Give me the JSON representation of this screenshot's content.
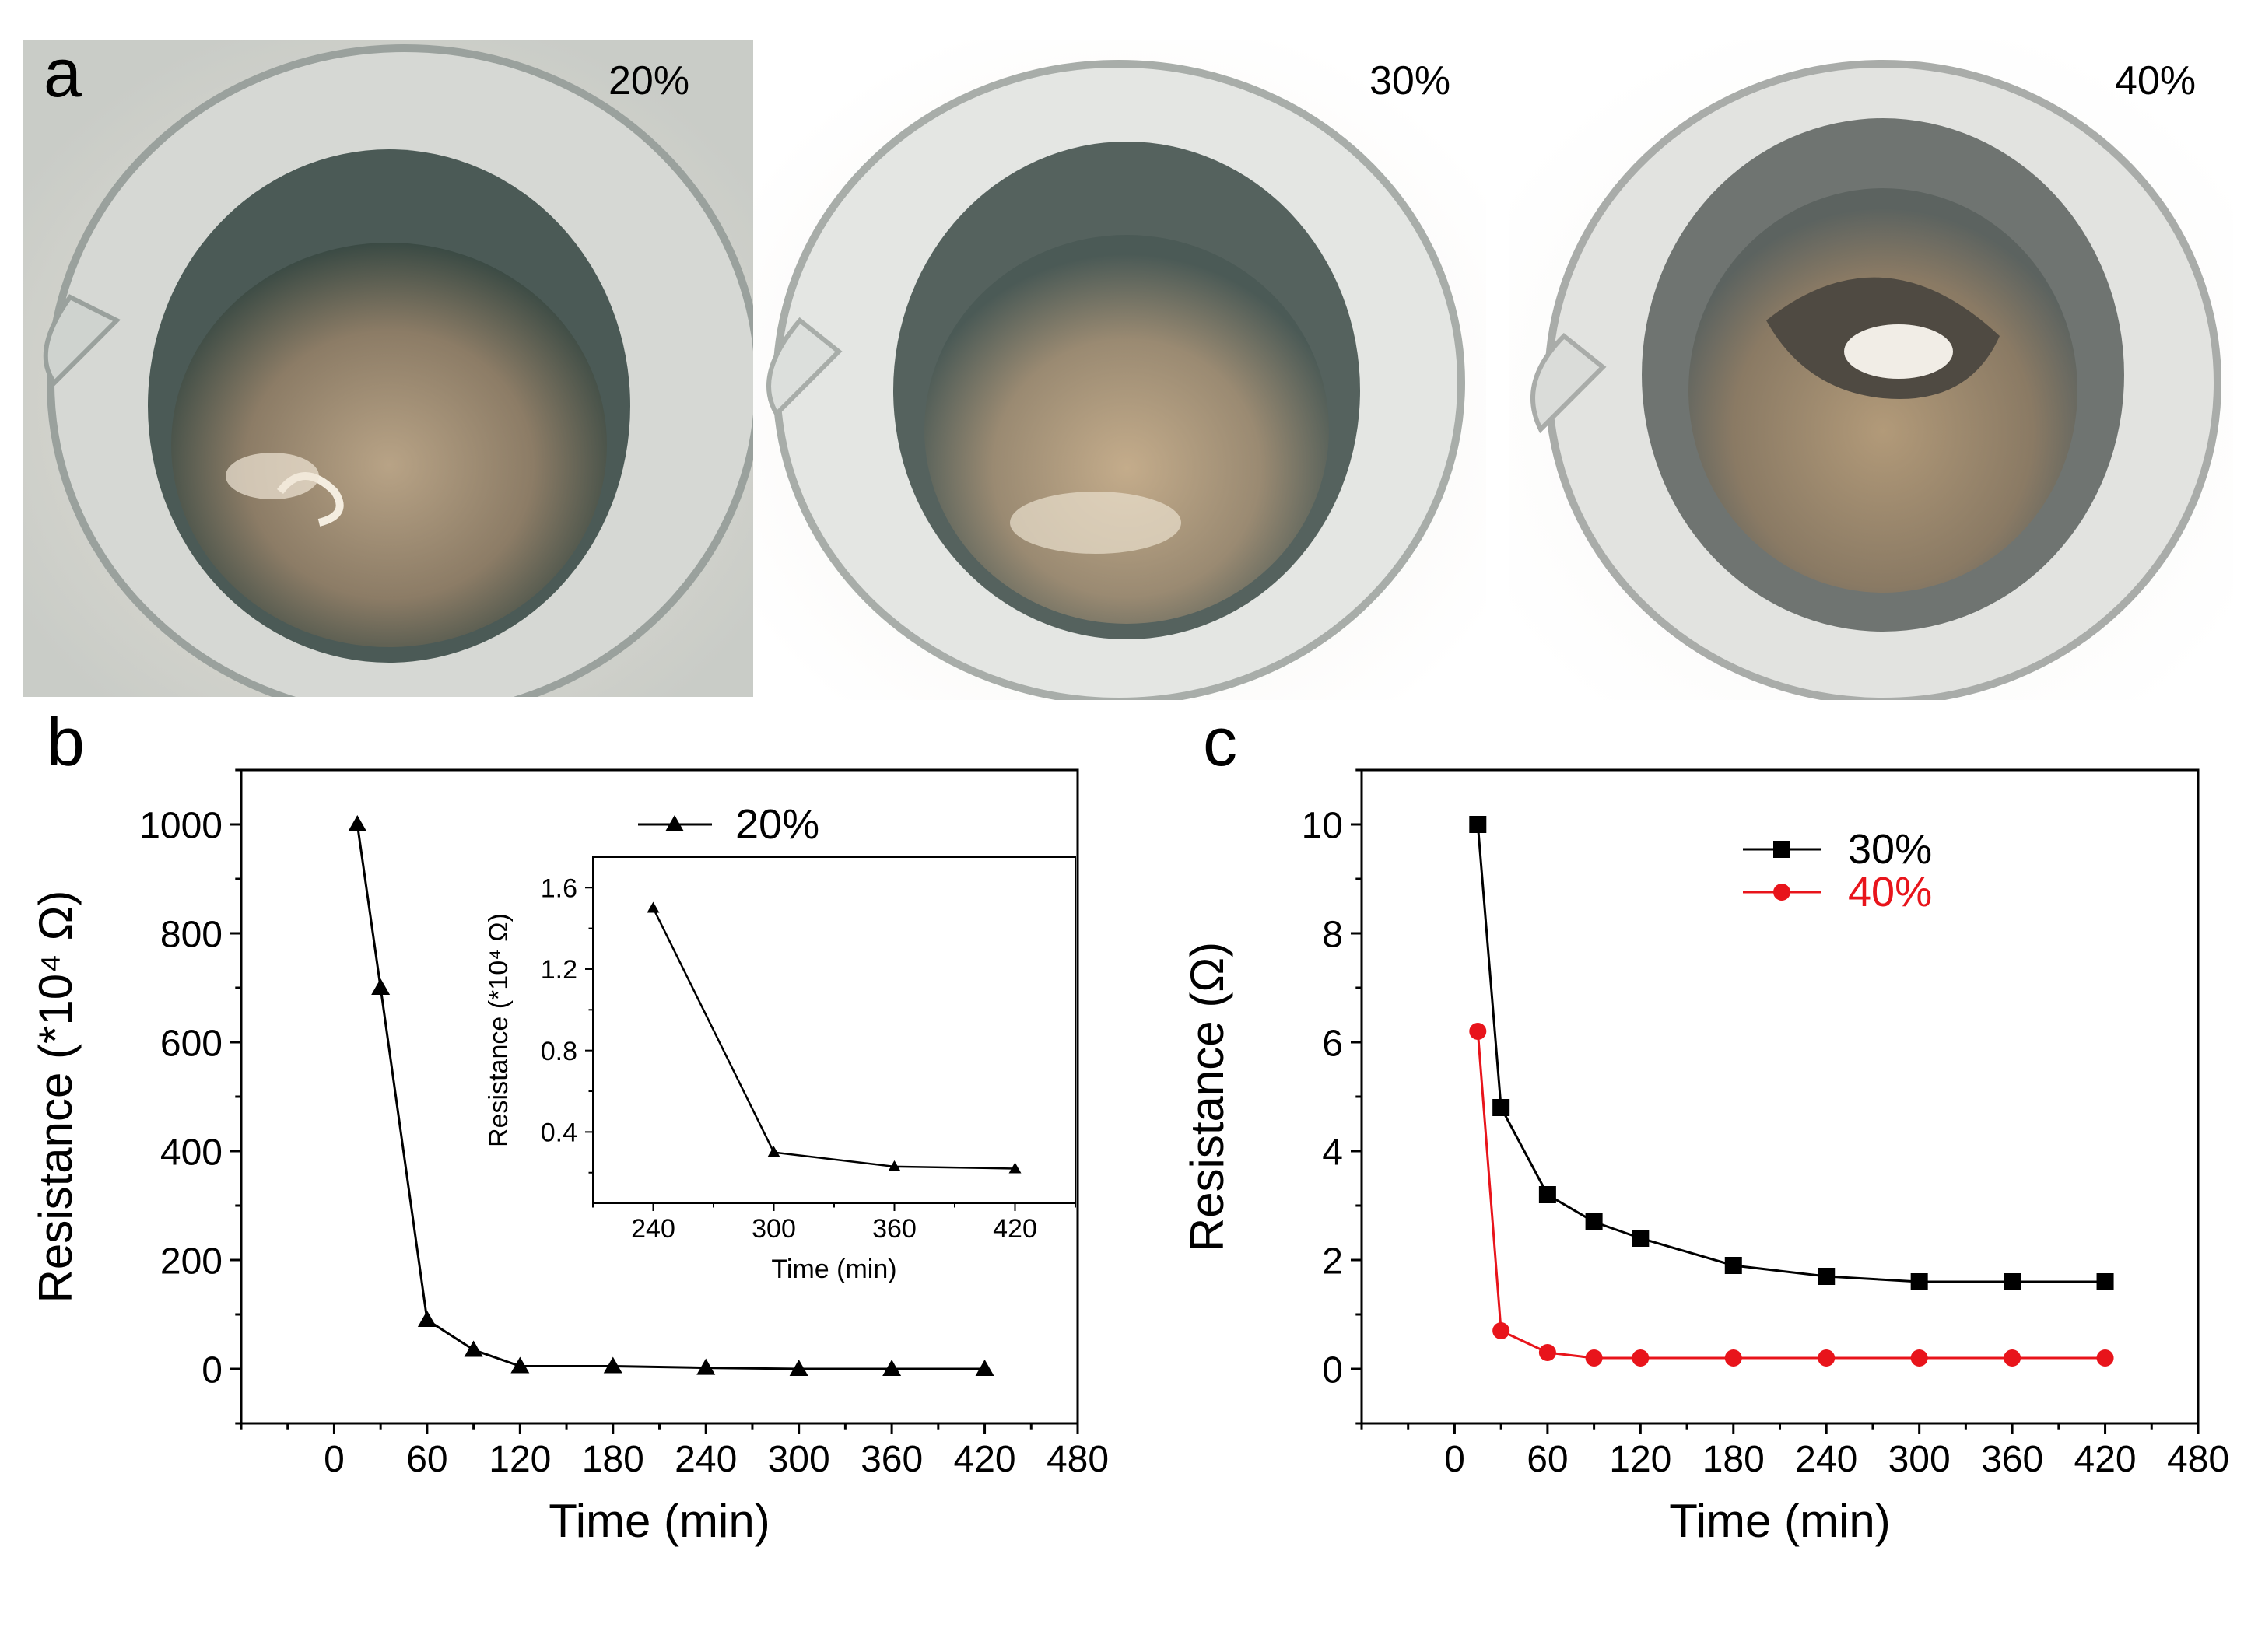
{
  "panels": {
    "a": {
      "letter": "a",
      "photos": [
        {
          "label": "20%"
        },
        {
          "label": "30%"
        },
        {
          "label": "40%"
        }
      ]
    },
    "b": {
      "letter": "b"
    },
    "c": {
      "letter": "c"
    }
  },
  "chart_data": [
    {
      "id": "b-main",
      "type": "line",
      "title": "",
      "xlabel": "Time (min)",
      "ylabel": "Resistance (*10⁴ Ω)",
      "xlim": [
        -60,
        480
      ],
      "ylim": [
        -100,
        1100
      ],
      "xticks": [
        0,
        60,
        120,
        180,
        240,
        300,
        360,
        420,
        480
      ],
      "yticks": [
        0,
        200,
        400,
        600,
        800,
        1000
      ],
      "legend_position": "top-center",
      "series": [
        {
          "name": "20%",
          "marker": "triangle",
          "color": "#000000",
          "x": [
            15,
            30,
            60,
            90,
            120,
            180,
            240,
            300,
            360,
            420
          ],
          "y": [
            1000,
            700,
            90,
            35,
            5,
            5,
            2,
            0,
            0,
            0
          ]
        }
      ]
    },
    {
      "id": "b-inset",
      "type": "line",
      "title": "",
      "xlabel": "Time (min)",
      "ylabel": "Resistance (*10⁴ Ω)",
      "xlim": [
        210,
        450
      ],
      "ylim": [
        0.05,
        1.75
      ],
      "xticks": [
        240,
        300,
        360,
        420
      ],
      "yticks": [
        0.4,
        0.8,
        1.2,
        1.6
      ],
      "series": [
        {
          "name": "20%",
          "marker": "triangle",
          "color": "#000000",
          "x": [
            240,
            300,
            360,
            420
          ],
          "y": [
            1.5,
            0.3,
            0.23,
            0.22
          ]
        }
      ]
    },
    {
      "id": "c-main",
      "type": "line",
      "title": "",
      "xlabel": "Time (min)",
      "ylabel": "Resistance (Ω)",
      "xlim": [
        -60,
        480
      ],
      "ylim": [
        -1,
        11
      ],
      "xticks": [
        0,
        60,
        120,
        180,
        240,
        300,
        360,
        420,
        480
      ],
      "yticks": [
        0,
        2,
        4,
        6,
        8,
        10
      ],
      "legend_position": "top-center",
      "series": [
        {
          "name": "30%",
          "marker": "square",
          "color": "#000000",
          "x": [
            15,
            30,
            60,
            90,
            120,
            180,
            240,
            300,
            360,
            420
          ],
          "y": [
            10,
            4.8,
            3.2,
            2.7,
            2.4,
            1.9,
            1.7,
            1.6,
            1.6,
            1.6
          ]
        },
        {
          "name": "40%",
          "marker": "circle",
          "color": "#e8141b",
          "x": [
            15,
            30,
            60,
            90,
            120,
            180,
            240,
            300,
            360,
            420
          ],
          "y": [
            6.2,
            0.7,
            0.3,
            0.2,
            0.2,
            0.2,
            0.2,
            0.2,
            0.2,
            0.2
          ]
        }
      ]
    }
  ]
}
